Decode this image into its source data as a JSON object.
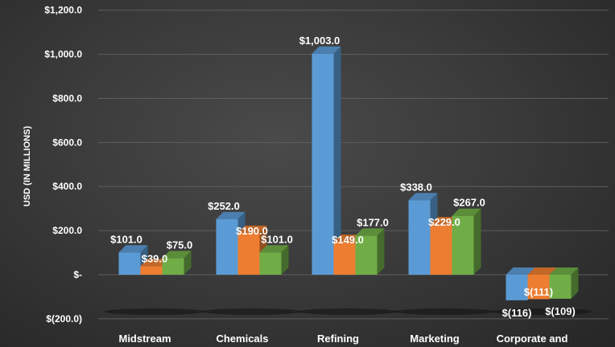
{
  "chart_data": {
    "type": "bar",
    "title": "",
    "xlabel": "",
    "ylabel": "USD (IN MILLIONS)",
    "ylim": [
      -200,
      1200
    ],
    "y_ticks": [
      -200,
      0,
      200,
      400,
      600,
      800,
      1000,
      1200
    ],
    "y_tick_labels": [
      "$(200.0)",
      "$-",
      "$200.0",
      "$400.0",
      "$600.0",
      "$800.0",
      "$1,000.0",
      "$1,200.0"
    ],
    "grid": true,
    "categories": [
      "Midstream",
      "Chemicals",
      "Refining",
      "Marketing",
      "Corporate and"
    ],
    "series": [
      {
        "color": "#5b9bd5",
        "values": [
          101,
          252,
          1003,
          338,
          -116
        ],
        "labels": [
          "$101.0",
          "$252.0",
          "$1,003.0",
          "$338.0",
          "$(116)"
        ]
      },
      {
        "color": "#ed7d31",
        "values": [
          39,
          190,
          149,
          229,
          -111
        ],
        "labels": [
          "$39.0",
          "$190.0",
          "$149.0",
          "$229.0",
          "$(111)"
        ]
      },
      {
        "color": "#70ad47",
        "values": [
          75,
          101,
          177,
          267,
          -109
        ],
        "labels": [
          "$75.0",
          "$101.0",
          "$177.0",
          "$267.0",
          "$(109)"
        ]
      }
    ]
  }
}
